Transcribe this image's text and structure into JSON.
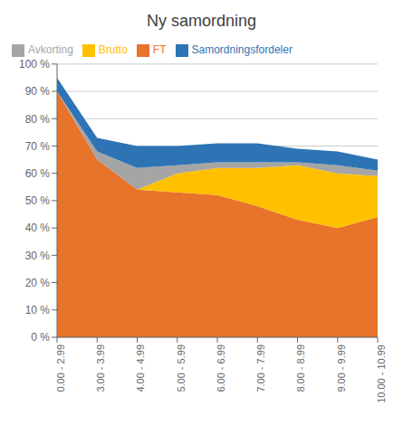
{
  "chart_data": {
    "type": "area",
    "title": "Ny samordning",
    "categories": [
      "0.00 - 2.99",
      "3.00 - 3.99",
      "4.00 - 4.99",
      "5.00 - 5.99",
      "6.00 - 6.99",
      "7.00 - 7.99",
      "8.00 - 8.99",
      "9.00 - 9.99",
      "10.00 - 10.99"
    ],
    "series": [
      {
        "name": "FT",
        "color": "#E8732A",
        "values": [
          90,
          65,
          54,
          53,
          52,
          48,
          43,
          40,
          44
        ]
      },
      {
        "name": "Brutto",
        "color": "#FFC000",
        "values": [
          0,
          0,
          0,
          7,
          10,
          14,
          20,
          20,
          15
        ]
      },
      {
        "name": "Avkorting",
        "color": "#A5A5A5",
        "values": [
          0,
          3,
          8,
          3,
          2,
          2,
          1,
          3,
          2
        ]
      },
      {
        "name": "Samordningsfordeler",
        "color": "#2E74B5",
        "values": [
          5,
          5,
          8,
          7,
          7,
          7,
          5,
          5,
          4
        ]
      }
    ],
    "stacked": true,
    "ylim": [
      0,
      100
    ],
    "yticks": [
      {
        "value": 0,
        "label": "0 %"
      },
      {
        "value": 10,
        "label": "10 %"
      },
      {
        "value": 20,
        "label": "20 %"
      },
      {
        "value": 30,
        "label": "30 %"
      },
      {
        "value": 40,
        "label": "40 %"
      },
      {
        "value": 50,
        "label": "50 %"
      },
      {
        "value": 60,
        "label": "60 %"
      },
      {
        "value": 70,
        "label": "70 %"
      },
      {
        "value": 80,
        "label": "80 %"
      },
      {
        "value": 90,
        "label": "90 %"
      },
      {
        "value": 100,
        "label": "100 %"
      }
    ],
    "grid": true,
    "legend": "upper left"
  }
}
